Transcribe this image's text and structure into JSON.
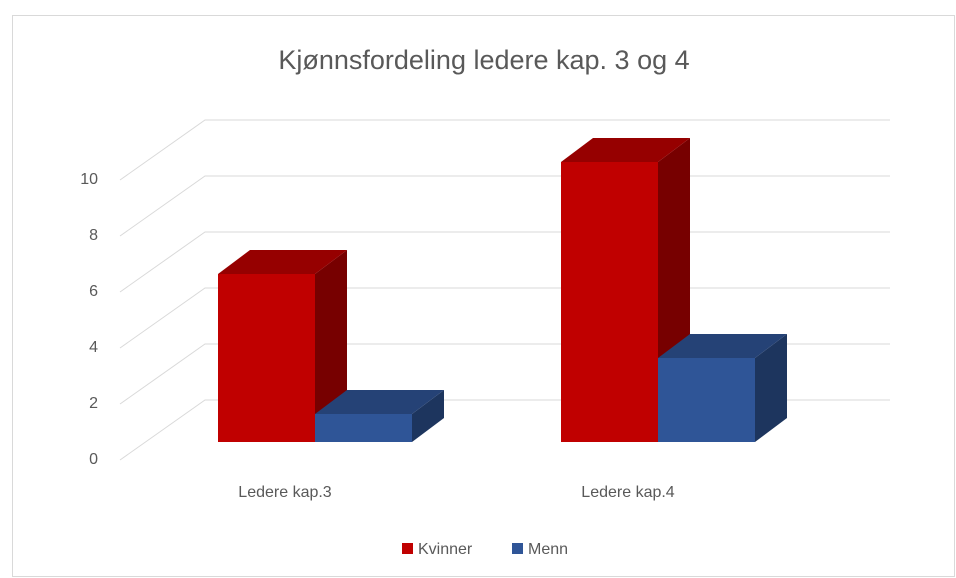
{
  "chart_data": {
    "type": "bar3d",
    "title": "Kjønnsfordeling ledere kap. 3 og 4",
    "categories": [
      "Ledere kap.3",
      "Ledere kap.4"
    ],
    "series": [
      {
        "name": "Kvinner",
        "color": "#c00000",
        "values": [
          6,
          10
        ]
      },
      {
        "name": "Menn",
        "color": "#2f5597",
        "values": [
          1,
          3
        ]
      }
    ],
    "ylim": [
      0,
      10
    ],
    "yticks": [
      0,
      2,
      4,
      6,
      8,
      10
    ],
    "grid": true,
    "legend": "bottom"
  }
}
